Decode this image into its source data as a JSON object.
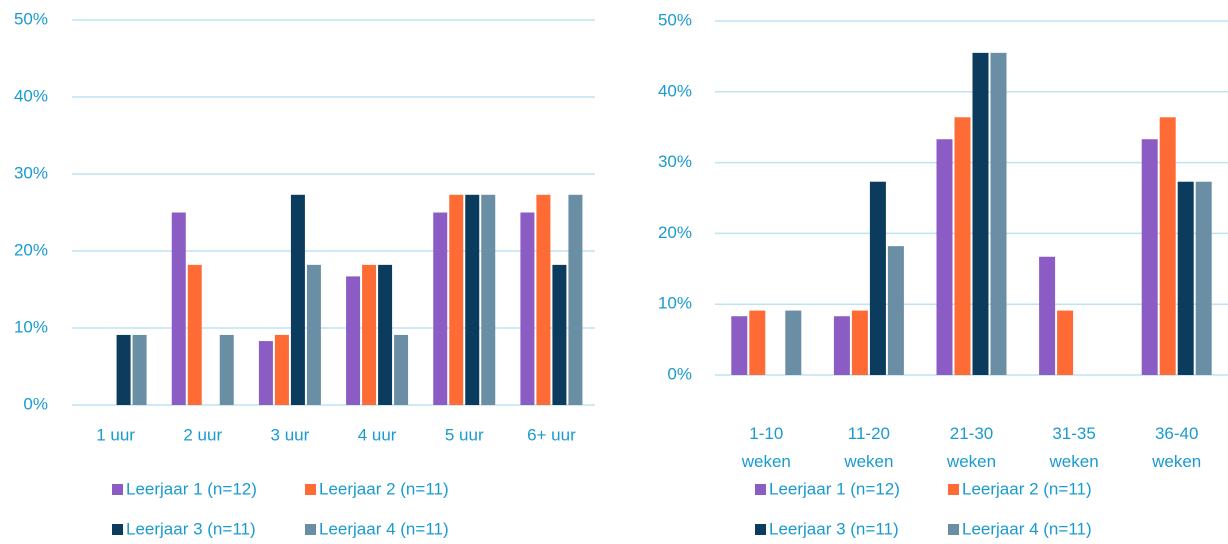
{
  "chart_data": [
    {
      "type": "bar",
      "categories": [
        "1 uur",
        "2 uur",
        "3 uur",
        "4 uur",
        "5 uur",
        "6+ uur"
      ],
      "series": [
        {
          "name": "Leerjaar 1 (n=12)",
          "color": "#8a5cc4",
          "values": [
            0,
            25,
            8.3,
            16.7,
            25,
            25
          ]
        },
        {
          "name": "Leerjaar 2 (n=11)",
          "color": "#ff6b35",
          "values": [
            0,
            18.2,
            9.1,
            18.2,
            27.3,
            27.3
          ]
        },
        {
          "name": "Leerjaar 3 (n=11)",
          "color": "#0b3c5d",
          "values": [
            9.1,
            0,
            27.3,
            18.2,
            27.3,
            18.2
          ]
        },
        {
          "name": "Leerjaar 4 (n=11)",
          "color": "#6a8fa4",
          "values": [
            9.1,
            9.1,
            18.2,
            9.1,
            27.3,
            27.3
          ]
        }
      ],
      "ylim": [
        0,
        50
      ],
      "yticks": [
        {
          "value": 0,
          "label": "0%"
        },
        {
          "value": 10,
          "label": "10%"
        },
        {
          "value": 20,
          "label": "20%"
        },
        {
          "value": 30,
          "label": "30%"
        },
        {
          "value": 40,
          "label": "40%"
        },
        {
          "value": 50,
          "label": "50%"
        }
      ],
      "grid": true
    },
    {
      "type": "bar",
      "categories": [
        "1-10 weken",
        "11-20 weken",
        "21-30 weken",
        "31-35 weken",
        "36-40 weken"
      ],
      "series": [
        {
          "name": "Leerjaar 1 (n=12)",
          "color": "#8a5cc4",
          "values": [
            8.3,
            8.3,
            33.3,
            16.7,
            33.3
          ]
        },
        {
          "name": "Leerjaar 2 (n=11)",
          "color": "#ff6b35",
          "values": [
            9.1,
            9.1,
            36.4,
            9.1,
            36.4
          ]
        },
        {
          "name": "Leerjaar 3 (n=11)",
          "color": "#0b3c5d",
          "values": [
            0,
            27.3,
            45.5,
            0,
            27.3
          ]
        },
        {
          "name": "Leerjaar 4 (n=11)",
          "color": "#6a8fa4",
          "values": [
            9.1,
            18.2,
            45.5,
            0,
            27.3
          ]
        }
      ],
      "ylim": [
        0,
        50
      ],
      "yticks": [
        {
          "value": 0,
          "label": "0%"
        },
        {
          "value": 10,
          "label": "10%"
        },
        {
          "value": 20,
          "label": "20%"
        },
        {
          "value": 30,
          "label": "30%"
        },
        {
          "value": 40,
          "label": "40%"
        },
        {
          "value": 50,
          "label": "50%"
        }
      ],
      "grid": true
    }
  ]
}
